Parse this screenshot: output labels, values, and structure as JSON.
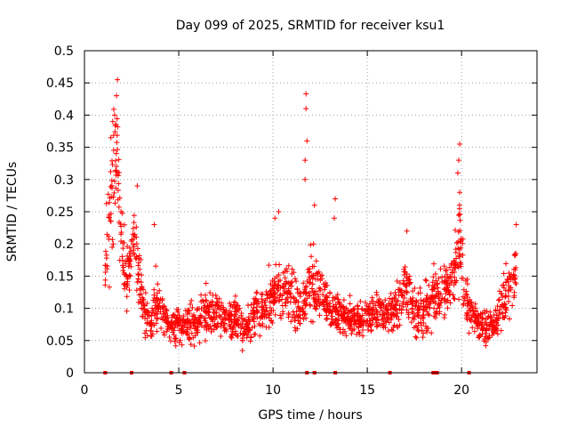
{
  "chart_data": {
    "type": "scatter",
    "title": "Day 099 of 2025, SRMTID for receiver ksu1",
    "xlabel": "GPS time / hours",
    "ylabel": "SRMTID / TECUs",
    "xlim": [
      0,
      24
    ],
    "ylim": [
      0,
      0.5
    ],
    "x_ticks": [
      "0",
      "5",
      "10",
      "15",
      "20"
    ],
    "y_ticks": [
      "0",
      "0.05",
      "0.1",
      "0.15",
      "0.2",
      "0.25",
      "0.3",
      "0.35",
      "0.4",
      "0.45",
      "0.5"
    ],
    "grid": true,
    "marker": "plus",
    "series_color": "#ff0000",
    "anchors": [
      [
        1.1,
        0.15,
        0.04
      ],
      [
        1.3,
        0.25,
        0.09
      ],
      [
        1.5,
        0.3,
        0.1
      ],
      [
        1.7,
        0.33,
        0.1
      ],
      [
        1.9,
        0.23,
        0.07
      ],
      [
        2.1,
        0.17,
        0.05
      ],
      [
        2.3,
        0.14,
        0.04
      ],
      [
        2.6,
        0.21,
        0.03
      ],
      [
        2.9,
        0.15,
        0.05
      ],
      [
        3.2,
        0.09,
        0.03
      ],
      [
        3.5,
        0.07,
        0.02
      ],
      [
        3.8,
        0.12,
        0.05
      ],
      [
        4.1,
        0.09,
        0.03
      ],
      [
        4.5,
        0.075,
        0.02
      ],
      [
        5.0,
        0.07,
        0.03
      ],
      [
        5.5,
        0.08,
        0.03
      ],
      [
        6.0,
        0.08,
        0.03
      ],
      [
        6.5,
        0.095,
        0.035
      ],
      [
        7.0,
        0.095,
        0.035
      ],
      [
        7.5,
        0.085,
        0.03
      ],
      [
        8.0,
        0.08,
        0.03
      ],
      [
        8.5,
        0.065,
        0.025
      ],
      [
        9.0,
        0.09,
        0.035
      ],
      [
        9.5,
        0.1,
        0.035
      ],
      [
        10.0,
        0.12,
        0.04
      ],
      [
        10.5,
        0.13,
        0.04
      ],
      [
        11.0,
        0.12,
        0.04
      ],
      [
        11.5,
        0.1,
        0.04
      ],
      [
        12.0,
        0.14,
        0.05
      ],
      [
        12.5,
        0.12,
        0.04
      ],
      [
        13.0,
        0.1,
        0.035
      ],
      [
        13.5,
        0.09,
        0.03
      ],
      [
        14.0,
        0.085,
        0.025
      ],
      [
        14.5,
        0.08,
        0.025
      ],
      [
        15.0,
        0.085,
        0.025
      ],
      [
        15.5,
        0.095,
        0.03
      ],
      [
        16.0,
        0.09,
        0.03
      ],
      [
        16.5,
        0.1,
        0.035
      ],
      [
        17.0,
        0.13,
        0.045
      ],
      [
        17.5,
        0.1,
        0.04
      ],
      [
        18.0,
        0.09,
        0.035
      ],
      [
        18.5,
        0.12,
        0.04
      ],
      [
        19.0,
        0.12,
        0.04
      ],
      [
        19.5,
        0.14,
        0.04
      ],
      [
        19.9,
        0.2,
        0.08
      ],
      [
        20.2,
        0.12,
        0.04
      ],
      [
        20.6,
        0.09,
        0.03
      ],
      [
        21.0,
        0.075,
        0.025
      ],
      [
        21.4,
        0.07,
        0.025
      ],
      [
        21.8,
        0.075,
        0.025
      ],
      [
        22.2,
        0.11,
        0.04
      ],
      [
        22.6,
        0.13,
        0.04
      ],
      [
        22.9,
        0.16,
        0.05
      ]
    ],
    "peaks": [
      [
        1.75,
        0.455
      ],
      [
        1.7,
        0.43
      ],
      [
        1.6,
        0.4
      ],
      [
        1.5,
        0.39
      ],
      [
        1.4,
        0.365
      ],
      [
        11.75,
        0.433
      ],
      [
        11.75,
        0.41
      ],
      [
        11.8,
        0.36
      ],
      [
        11.7,
        0.33
      ],
      [
        11.7,
        0.3
      ],
      [
        19.9,
        0.355
      ],
      [
        19.85,
        0.33
      ],
      [
        19.8,
        0.31
      ],
      [
        19.9,
        0.28
      ],
      [
        13.3,
        0.27
      ],
      [
        13.25,
        0.24
      ],
      [
        22.9,
        0.23
      ],
      [
        12.2,
        0.26
      ],
      [
        12.15,
        0.2
      ],
      [
        17.1,
        0.22
      ],
      [
        10.3,
        0.25
      ],
      [
        10.1,
        0.24
      ],
      [
        3.7,
        0.23
      ],
      [
        2.8,
        0.29
      ]
    ],
    "zero_points_x": [
      1.1,
      2.5,
      4.6,
      5.3,
      11.8,
      12.2,
      13.3,
      16.2,
      18.5,
      18.6,
      18.7,
      20.4
    ]
  }
}
